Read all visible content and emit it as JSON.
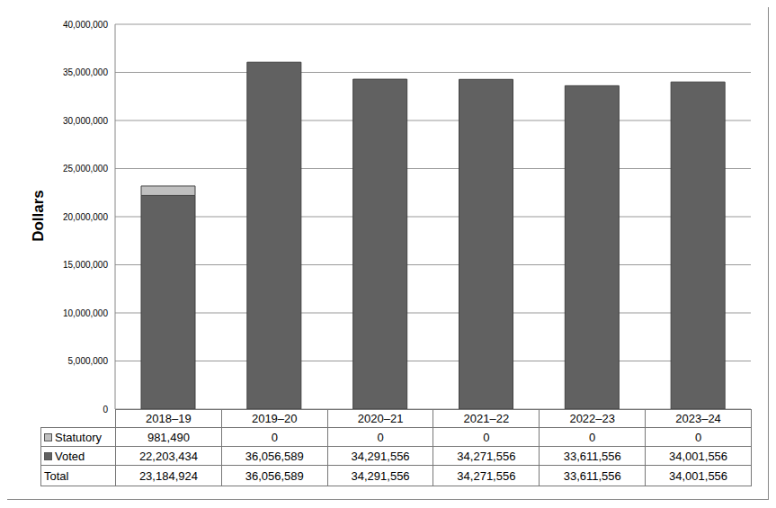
{
  "chart_data": {
    "type": "bar",
    "stacked": true,
    "grid": true,
    "y_label": "Dollars",
    "categories": [
      "2018–19",
      "2019–20",
      "2020–21",
      "2021–22",
      "2022–23",
      "2023–24"
    ],
    "series": [
      {
        "name": "Statutory",
        "color": "#c0c0c0",
        "values": [
          981490,
          0,
          0,
          0,
          0,
          0
        ],
        "value_labels": [
          "981,490",
          "0",
          "0",
          "0",
          "0",
          "0"
        ]
      },
      {
        "name": "Voted",
        "color": "#616161",
        "values": [
          22203434,
          36056589,
          34291556,
          34271556,
          33611556,
          34001556
        ],
        "value_labels": [
          "22,203,434",
          "36,056,589",
          "34,291,556",
          "34,271,556",
          "33,611,556",
          "34,001,556"
        ]
      }
    ],
    "total": {
      "name": "Total",
      "values": [
        23184924,
        36056589,
        34291556,
        34271556,
        33611556,
        34001556
      ],
      "value_labels": [
        "23,184,924",
        "36,056,589",
        "34,291,556",
        "34,271,556",
        "33,611,556",
        "34,001,556"
      ]
    },
    "ylim": [
      0,
      40000000
    ],
    "yticks": [
      0,
      {
        "value": 5000000,
        "label": "5,000,000"
      },
      {
        "value": 10000000,
        "label": "10,000,000"
      },
      {
        "value": 15000000,
        "label": "15,000,000"
      },
      {
        "value": 20000000,
        "label": "20,000,000"
      },
      {
        "value": 25000000,
        "label": "25,000,000"
      },
      {
        "value": 30000000,
        "label": "30,000,000"
      },
      {
        "value": 35000000,
        "label": "35,000,000"
      },
      {
        "value": 40000000,
        "label": "40,000,000"
      }
    ]
  }
}
